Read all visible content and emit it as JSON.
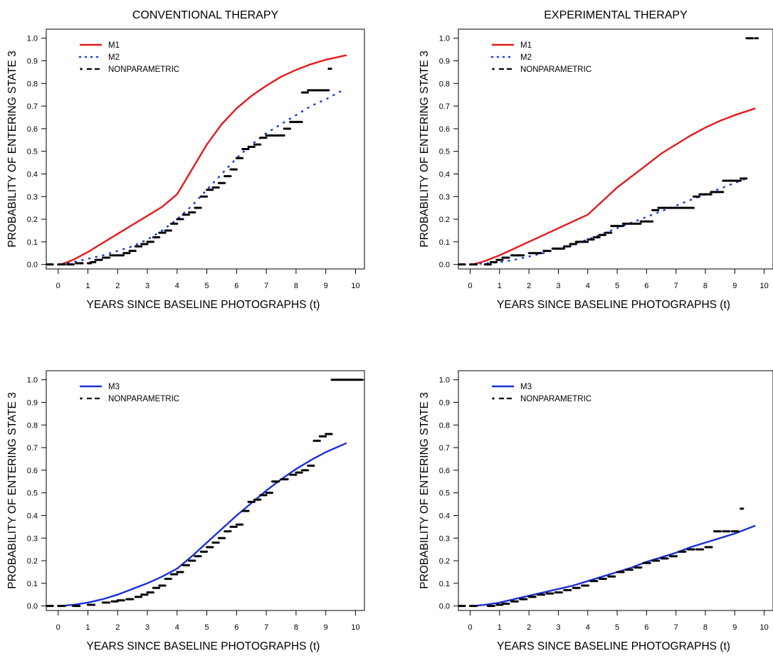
{
  "colors": {
    "m1": "#e41a1c",
    "m2": "#1f3fe0",
    "m3": "#1b2fd6",
    "nonparametric": "#000000"
  },
  "chart_data": [
    {
      "type": "line",
      "title": "CONVENTIONAL THERAPY",
      "xlabel": "YEARS  SINCE  BASELINE  PHOTOGRAPHS (t)",
      "ylabel": "PROBABILITY  OF  ENTERING  STATE  3",
      "xlim": [
        -0.4,
        10.3
      ],
      "ylim": [
        -0.02,
        1.04
      ],
      "xticks": [
        "0",
        "1",
        "2",
        "3",
        "4",
        "5",
        "6",
        "7",
        "8",
        "9",
        "10"
      ],
      "yticks": [
        "0.0",
        "0.1",
        "0.2",
        "0.3",
        "0.4",
        "0.5",
        "0.6",
        "0.7",
        "0.8",
        "0.9",
        "1.0"
      ],
      "legend": [
        "M1",
        "M2",
        "NONPARAMETRIC"
      ],
      "legend_position": "top-left",
      "series": [
        {
          "name": "M1",
          "style": "solid",
          "color": "#e41a1c",
          "x": [
            0.1,
            0.5,
            1.0,
            1.5,
            2.0,
            2.5,
            3.0,
            3.5,
            4.0,
            4.5,
            5.0,
            5.5,
            6.0,
            6.5,
            7.0,
            7.5,
            8.0,
            8.5,
            9.0,
            9.7
          ],
          "y": [
            0.0,
            0.02,
            0.055,
            0.095,
            0.135,
            0.175,
            0.215,
            0.255,
            0.31,
            0.42,
            0.53,
            0.62,
            0.69,
            0.745,
            0.79,
            0.83,
            0.86,
            0.885,
            0.905,
            0.925
          ]
        },
        {
          "name": "M2",
          "style": "dotted",
          "color": "#1f3fe0",
          "x": [
            0.1,
            0.5,
            1.0,
            1.5,
            2.0,
            2.5,
            3.0,
            3.5,
            4.0,
            4.5,
            5.0,
            5.5,
            6.0,
            6.5,
            7.0,
            7.5,
            8.0,
            8.5,
            9.0,
            9.5
          ],
          "y": [
            0.0,
            0.01,
            0.025,
            0.04,
            0.06,
            0.08,
            0.11,
            0.15,
            0.2,
            0.26,
            0.33,
            0.4,
            0.47,
            0.53,
            0.58,
            0.62,
            0.66,
            0.7,
            0.73,
            0.765
          ]
        },
        {
          "name": "NONPARAMETRIC",
          "style": "step",
          "color": "#000000",
          "x": [
            -0.4,
            0.0,
            0.3,
            0.6,
            1.0,
            1.1,
            1.25,
            1.5,
            1.75,
            2.0,
            2.2,
            2.4,
            2.6,
            2.8,
            3.0,
            3.2,
            3.4,
            3.6,
            3.8,
            4.0,
            4.2,
            4.4,
            4.6,
            4.8,
            5.0,
            5.2,
            5.4,
            5.6,
            5.8,
            6.0,
            6.2,
            6.4,
            6.6,
            6.8,
            7.0,
            7.2,
            7.4,
            7.6,
            7.8,
            8.0,
            8.2,
            8.4,
            8.6,
            8.8,
            9.0,
            9.1
          ],
          "y": [
            0.0,
            0.0,
            0.0,
            0.005,
            0.005,
            0.01,
            0.02,
            0.03,
            0.04,
            0.04,
            0.05,
            0.06,
            0.08,
            0.09,
            0.1,
            0.12,
            0.14,
            0.15,
            0.18,
            0.2,
            0.22,
            0.23,
            0.25,
            0.3,
            0.33,
            0.34,
            0.36,
            0.39,
            0.42,
            0.47,
            0.51,
            0.52,
            0.53,
            0.56,
            0.57,
            0.57,
            0.57,
            0.6,
            0.63,
            0.63,
            0.76,
            0.77,
            0.77,
            0.77,
            0.77,
            0.865
          ]
        }
      ]
    },
    {
      "type": "line",
      "title": "EXPERIMENTAL  THERAPY",
      "xlabel": "YEARS  SINCE  BASELINE  PHOTOGRAPHS (t)",
      "ylabel": "PROBABILITY  OF  ENTERING  STATE  3",
      "xlim": [
        -0.4,
        10.3
      ],
      "ylim": [
        -0.02,
        1.04
      ],
      "xticks": [
        "0",
        "1",
        "2",
        "3",
        "4",
        "5",
        "6",
        "7",
        "8",
        "9",
        "10"
      ],
      "yticks": [
        "0.0",
        "0.1",
        "0.2",
        "0.3",
        "0.4",
        "0.5",
        "0.6",
        "0.7",
        "0.8",
        "0.9",
        "1.0"
      ],
      "legend": [
        "M1",
        "M2",
        "NONPARAMETRIC"
      ],
      "legend_position": "top-left",
      "series": [
        {
          "name": "M1",
          "style": "solid",
          "color": "#e41a1c",
          "x": [
            0.1,
            0.5,
            1.0,
            1.5,
            2.0,
            2.5,
            3.0,
            3.5,
            4.0,
            4.5,
            5.0,
            5.5,
            6.0,
            6.5,
            7.0,
            7.5,
            8.0,
            8.5,
            9.0,
            9.7
          ],
          "y": [
            0.0,
            0.015,
            0.04,
            0.07,
            0.1,
            0.13,
            0.16,
            0.19,
            0.22,
            0.28,
            0.34,
            0.39,
            0.44,
            0.49,
            0.53,
            0.57,
            0.605,
            0.635,
            0.66,
            0.69
          ]
        },
        {
          "name": "M2",
          "style": "dotted",
          "color": "#1f3fe0",
          "x": [
            0.1,
            0.5,
            1.0,
            1.5,
            2.0,
            2.5,
            3.0,
            3.5,
            4.0,
            4.5,
            5.0,
            5.5,
            6.0,
            6.5,
            7.0,
            7.5,
            8.0,
            8.5,
            9.0,
            9.5
          ],
          "y": [
            0.0,
            0.005,
            0.01,
            0.02,
            0.035,
            0.05,
            0.07,
            0.09,
            0.11,
            0.135,
            0.16,
            0.185,
            0.21,
            0.235,
            0.26,
            0.285,
            0.31,
            0.335,
            0.36,
            0.385
          ]
        },
        {
          "name": "NONPARAMETRIC",
          "style": "step",
          "color": "#000000",
          "x": [
            -0.4,
            0.0,
            0.5,
            0.7,
            0.9,
            1.1,
            1.4,
            1.6,
            2.0,
            2.2,
            2.5,
            2.8,
            3.0,
            3.2,
            3.4,
            3.6,
            3.8,
            4.0,
            4.2,
            4.4,
            4.6,
            4.8,
            5.0,
            5.2,
            5.4,
            5.6,
            5.8,
            6.0,
            6.2,
            6.4,
            6.6,
            6.8,
            7.0,
            7.2,
            7.4,
            7.6,
            7.8,
            8.0,
            8.2,
            8.4,
            8.6,
            8.8,
            9.0,
            9.2,
            9.4,
            9.7
          ],
          "y": [
            0.0,
            0.0,
            0.0,
            0.01,
            0.02,
            0.03,
            0.04,
            0.04,
            0.05,
            0.05,
            0.06,
            0.07,
            0.07,
            0.08,
            0.09,
            0.1,
            0.1,
            0.11,
            0.12,
            0.13,
            0.14,
            0.17,
            0.17,
            0.18,
            0.18,
            0.18,
            0.19,
            0.19,
            0.24,
            0.25,
            0.25,
            0.25,
            0.25,
            0.25,
            0.25,
            0.3,
            0.31,
            0.31,
            0.32,
            0.32,
            0.37,
            0.37,
            0.37,
            0.38,
            1.0,
            1.0
          ]
        }
      ]
    },
    {
      "type": "line",
      "title": "",
      "xlabel": "YEARS  SINCE  BASELINE  PHOTOGRAPHS (t)",
      "ylabel": "PROBABILITY  OF  ENTERING  STATE  3",
      "xlim": [
        -0.4,
        10.3
      ],
      "ylim": [
        -0.02,
        1.04
      ],
      "xticks": [
        "0",
        "1",
        "2",
        "3",
        "4",
        "5",
        "6",
        "7",
        "8",
        "9",
        "10"
      ],
      "yticks": [
        "0.0",
        "0.1",
        "0.2",
        "0.3",
        "0.4",
        "0.5",
        "0.6",
        "0.7",
        "0.8",
        "0.9",
        "1.0"
      ],
      "legend": [
        "M3",
        "NONPARAMETRIC"
      ],
      "legend_position": "top-left",
      "series": [
        {
          "name": "M3",
          "style": "solid",
          "color": "#1b2fd6",
          "x": [
            0.1,
            0.5,
            1.0,
            1.5,
            2.0,
            2.5,
            3.0,
            3.5,
            4.0,
            4.5,
            5.0,
            5.5,
            6.0,
            6.5,
            7.0,
            7.5,
            8.0,
            8.5,
            9.0,
            9.7
          ],
          "y": [
            0.0,
            0.005,
            0.015,
            0.03,
            0.05,
            0.075,
            0.1,
            0.13,
            0.165,
            0.22,
            0.28,
            0.34,
            0.4,
            0.455,
            0.51,
            0.56,
            0.605,
            0.645,
            0.68,
            0.72
          ]
        },
        {
          "name": "NONPARAMETRIC",
          "style": "step",
          "color": "#000000",
          "x": [
            -0.4,
            0.0,
            0.5,
            1.0,
            1.5,
            1.8,
            2.0,
            2.3,
            2.6,
            2.8,
            3.0,
            3.2,
            3.4,
            3.6,
            3.8,
            4.0,
            4.2,
            4.4,
            4.6,
            4.8,
            5.0,
            5.2,
            5.4,
            5.6,
            5.8,
            6.0,
            6.2,
            6.4,
            6.6,
            6.8,
            7.0,
            7.2,
            7.5,
            7.8,
            8.0,
            8.2,
            8.4,
            8.6,
            8.8,
            9.0,
            9.2,
            9.4,
            9.6,
            9.8,
            10.0,
            10.3
          ],
          "y": [
            0.0,
            0.0,
            0.0,
            0.005,
            0.015,
            0.02,
            0.025,
            0.03,
            0.04,
            0.05,
            0.06,
            0.08,
            0.09,
            0.12,
            0.14,
            0.15,
            0.18,
            0.2,
            0.22,
            0.24,
            0.26,
            0.28,
            0.3,
            0.33,
            0.35,
            0.36,
            0.42,
            0.46,
            0.47,
            0.49,
            0.5,
            0.55,
            0.56,
            0.58,
            0.59,
            0.6,
            0.62,
            0.73,
            0.75,
            0.76,
            1.0,
            1.0,
            1.0,
            1.0,
            1.0,
            1.0
          ]
        }
      ]
    },
    {
      "type": "line",
      "title": "",
      "xlabel": "YEARS  SINCE  BASELINE  PHOTOGRAPHS (t)",
      "ylabel": "PROBABILITY  OF  ENTERING  STATE  3",
      "xlim": [
        -0.4,
        10.3
      ],
      "ylim": [
        -0.02,
        1.04
      ],
      "xticks": [
        "0",
        "1",
        "2",
        "3",
        "4",
        "5",
        "6",
        "7",
        "8",
        "9",
        "10"
      ],
      "yticks": [
        "0.0",
        "0.1",
        "0.2",
        "0.3",
        "0.4",
        "0.5",
        "0.6",
        "0.7",
        "0.8",
        "0.9",
        "1.0"
      ],
      "legend": [
        "M3",
        "NONPARAMETRIC"
      ],
      "legend_position": "top-left",
      "series": [
        {
          "name": "M3",
          "style": "solid",
          "color": "#1b2fd6",
          "x": [
            0.1,
            0.5,
            1.0,
            1.5,
            2.0,
            2.5,
            3.0,
            3.5,
            4.0,
            4.5,
            5.0,
            5.5,
            6.0,
            6.5,
            7.0,
            7.5,
            8.0,
            8.5,
            9.0,
            9.7
          ],
          "y": [
            0.0,
            0.005,
            0.015,
            0.03,
            0.045,
            0.06,
            0.075,
            0.09,
            0.11,
            0.13,
            0.15,
            0.17,
            0.195,
            0.215,
            0.235,
            0.26,
            0.28,
            0.3,
            0.32,
            0.355
          ]
        },
        {
          "name": "NONPARAMETRIC",
          "style": "step",
          "color": "#000000",
          "x": [
            -0.4,
            0.0,
            0.6,
            0.9,
            1.1,
            1.4,
            1.7,
            2.0,
            2.3,
            2.6,
            2.9,
            3.2,
            3.5,
            3.8,
            4.1,
            4.4,
            4.7,
            5.0,
            5.3,
            5.6,
            5.9,
            6.2,
            6.5,
            6.8,
            7.1,
            7.4,
            7.7,
            8.0,
            8.3,
            8.6,
            8.9,
            9.2
          ],
          "y": [
            0.0,
            0.0,
            0.0,
            0.005,
            0.01,
            0.02,
            0.03,
            0.04,
            0.05,
            0.055,
            0.06,
            0.07,
            0.08,
            0.09,
            0.11,
            0.12,
            0.13,
            0.15,
            0.16,
            0.17,
            0.19,
            0.2,
            0.21,
            0.22,
            0.24,
            0.25,
            0.25,
            0.26,
            0.33,
            0.33,
            0.33,
            0.43
          ]
        }
      ]
    }
  ]
}
